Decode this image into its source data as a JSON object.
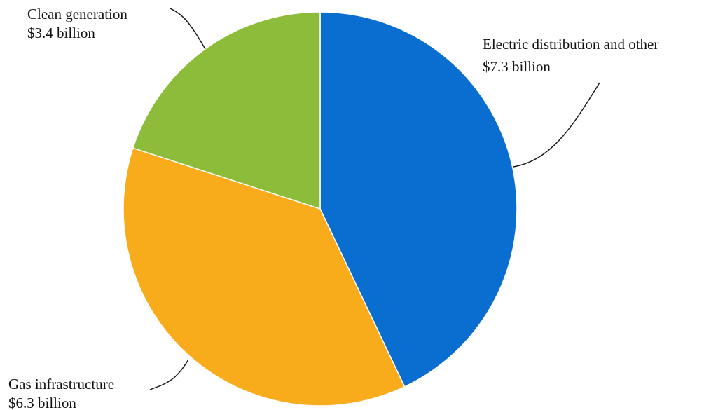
{
  "chart_data": {
    "type": "pie",
    "unit": "$ billion",
    "slices": [
      {
        "name": "Electric distribution and other",
        "value": 7.3,
        "label": "$7.3 billion",
        "color": "#0a6ed1"
      },
      {
        "name": "Gas infrastructure",
        "value": 6.3,
        "label": "$6.3 billion",
        "color": "#f8ab1b"
      },
      {
        "name": "Clean generation",
        "value": 3.4,
        "label": "$3.4 billion",
        "color": "#8dbb3a"
      }
    ],
    "start": "12 o'clock",
    "direction": "clockwise",
    "legend": "none"
  }
}
